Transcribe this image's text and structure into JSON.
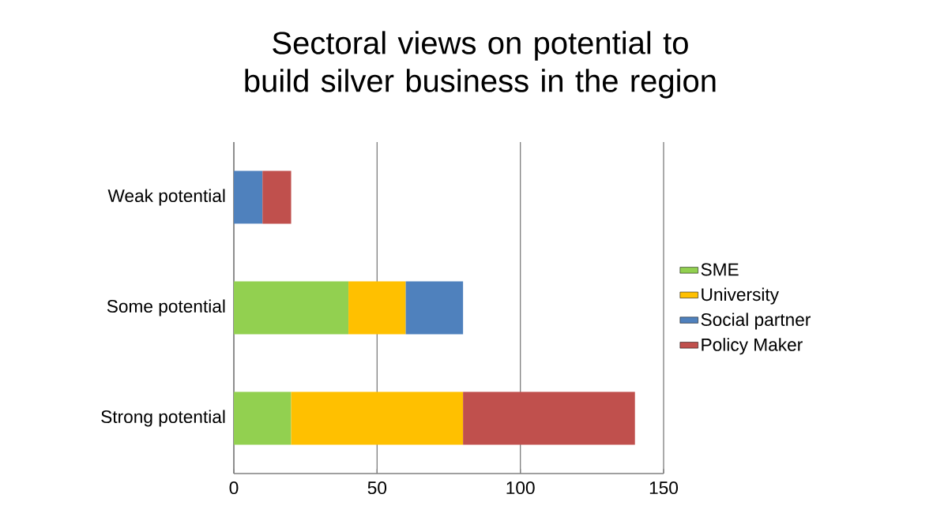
{
  "chart_data": {
    "type": "bar",
    "orientation": "horizontal",
    "stacked": true,
    "title": "Sectoral views on potential to build silver business in the region",
    "categories": [
      "Weak potential",
      "Some potential",
      "Strong potential"
    ],
    "series": [
      {
        "name": "SME",
        "color": "#92d050",
        "values": [
          null,
          40,
          20
        ]
      },
      {
        "name": "University",
        "color": "#ffc000",
        "values": [
          null,
          20,
          60
        ]
      },
      {
        "name": "Social partner",
        "color": "#4f81bd",
        "values": [
          10,
          20,
          null
        ]
      },
      {
        "name": "Policy Maker",
        "color": "#c0504d",
        "values": [
          10,
          null,
          60
        ]
      }
    ],
    "xlim": [
      0,
      150
    ],
    "xticks": [
      0,
      50,
      100,
      150
    ],
    "grid": "x",
    "legend": "right"
  }
}
